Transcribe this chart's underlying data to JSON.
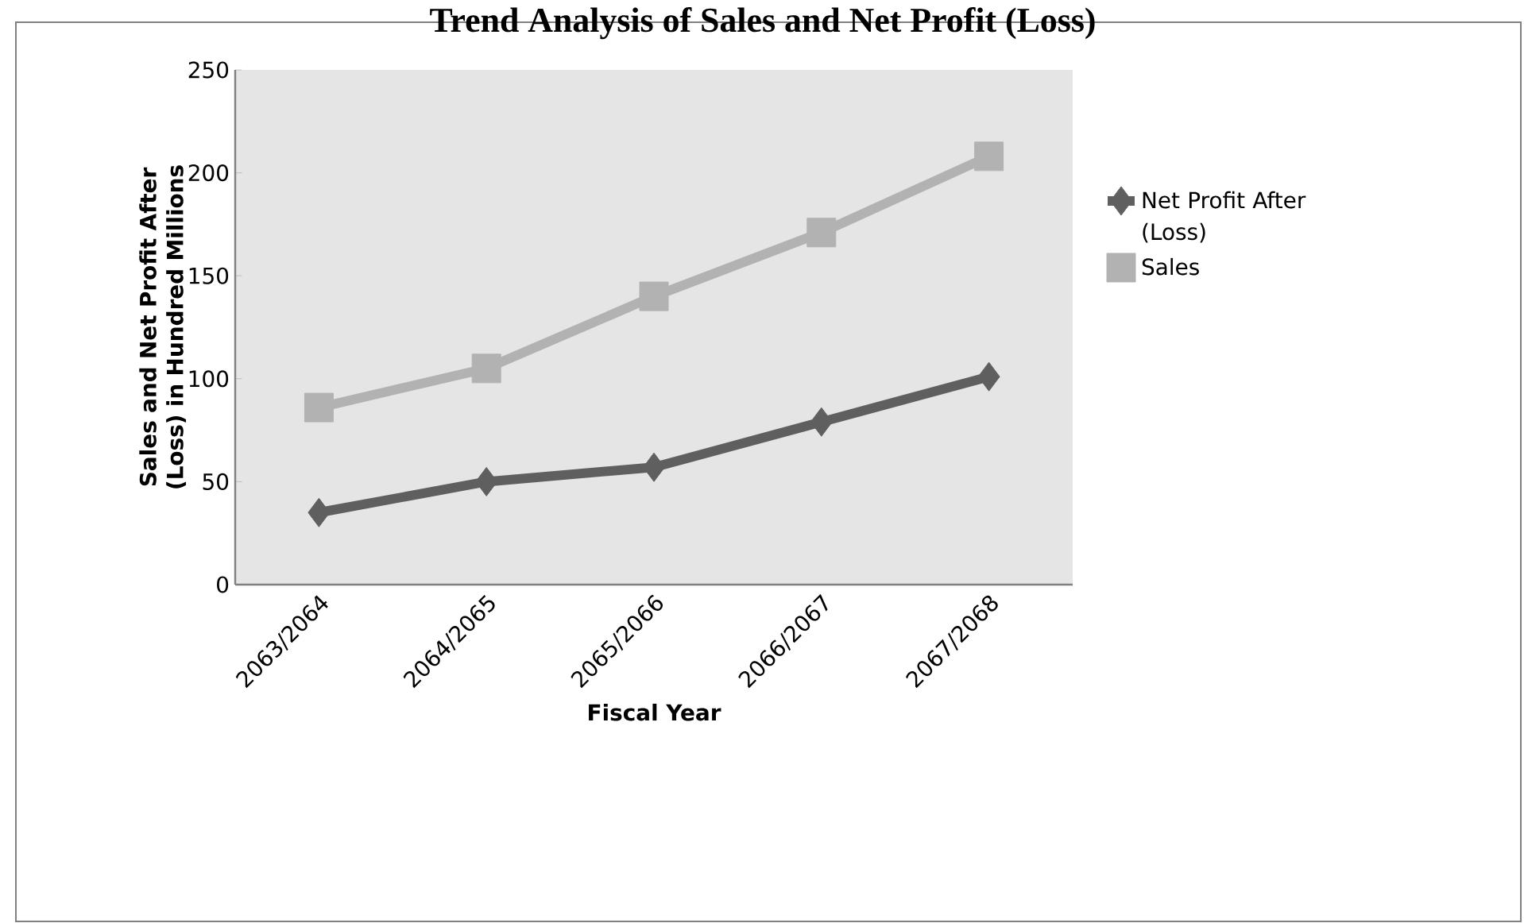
{
  "chart_data": {
    "type": "line",
    "title": "Trend Analysis of Sales and Net Profit (Loss)",
    "xlabel": "Fiscal Year",
    "ylabel": "Sales and Net Profit After (Loss) in Hundred Millions",
    "categories": [
      "2063/2064",
      "2064/2065",
      "2065/2066",
      "2066/2067",
      "2067/2068"
    ],
    "series": [
      {
        "name": "Net Profit After (Loss)",
        "color": "#5f5f5f",
        "marker": "diamond",
        "values": [
          35,
          50,
          57,
          79,
          101
        ]
      },
      {
        "name": "Sales",
        "color": "#b2b2b2",
        "marker": "square",
        "values": [
          86,
          105,
          140,
          171,
          208
        ]
      }
    ],
    "ylim": [
      0,
      250
    ],
    "yticks": [
      0,
      50,
      100,
      150,
      200,
      250
    ],
    "grid": false,
    "legend": "right"
  }
}
